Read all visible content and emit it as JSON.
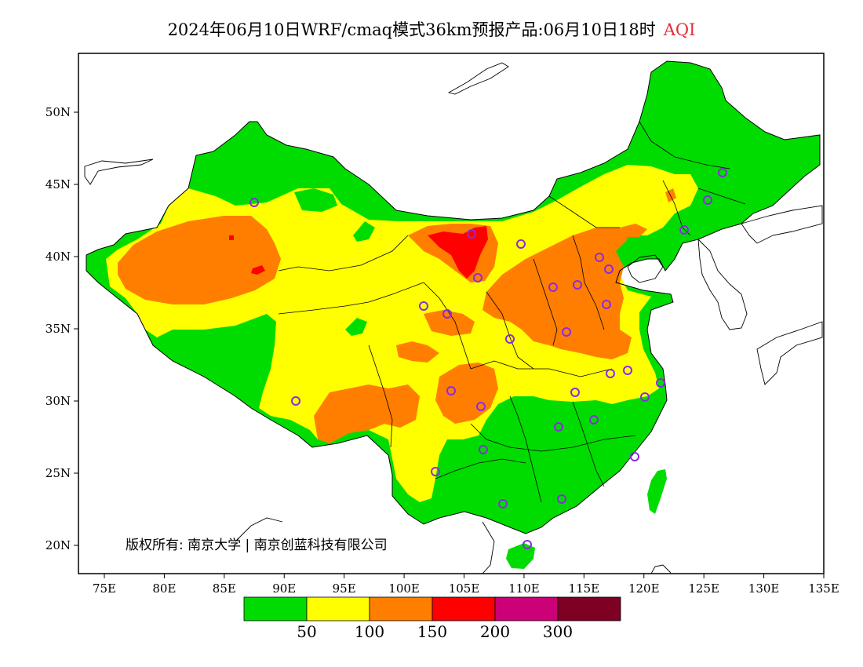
{
  "title": {
    "main": "2024年06月10日WRF/cmaq模式36km预报产品:06月10日18时",
    "variable": "AQI"
  },
  "map": {
    "lon_range": [
      73,
      135
    ],
    "lat_range": [
      18,
      54
    ],
    "x_ticks": [
      "75E",
      "80E",
      "85E",
      "90E",
      "95E",
      "100E",
      "105E",
      "110E",
      "115E",
      "120E",
      "125E",
      "130E",
      "135E"
    ],
    "y_ticks": [
      "20N",
      "25N",
      "30N",
      "35N",
      "40N",
      "45N",
      "50N"
    ],
    "colors": {
      "aqi_0_50": "#00dc00",
      "aqi_50_100": "#ffff00",
      "aqi_100_150": "#ff7e00",
      "aqi_150_200": "#ff0000",
      "aqi_200_300": "#cc0077",
      "aqi_300_plus": "#7e0023"
    },
    "station_marker_color": "#8a2be2"
  },
  "legend": {
    "colors": [
      "#00dc00",
      "#ffff00",
      "#ff7e00",
      "#ff0000",
      "#cc0077",
      "#7e0023"
    ],
    "labels": [
      "50",
      "100",
      "150",
      "200",
      "300"
    ]
  },
  "copyright": "版权所有: 南京大学 | 南京创蓝科技有限公司"
}
